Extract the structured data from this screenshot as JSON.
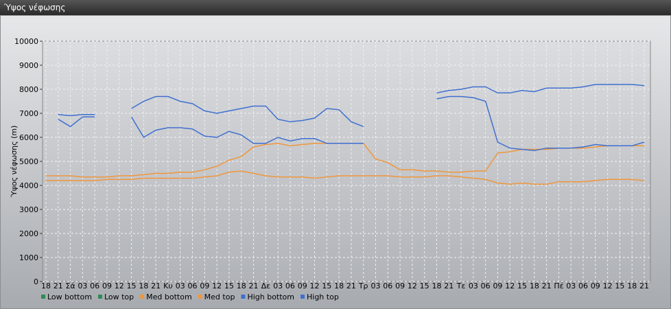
{
  "window_title": "Ύψος νέφωσης",
  "chart_data": {
    "type": "line",
    "ylabel": "Ύψος νέφωσης (m)",
    "categories": [
      "18",
      "21",
      "Σά",
      "03",
      "06",
      "09",
      "12",
      "15",
      "18",
      "21",
      "Κυ",
      "03",
      "06",
      "09",
      "12",
      "15",
      "18",
      "21",
      "Δε",
      "03",
      "06",
      "09",
      "12",
      "15",
      "18",
      "21",
      "Τρ",
      "03",
      "06",
      "09",
      "12",
      "15",
      "18",
      "21",
      "Τε",
      "03",
      "06",
      "09",
      "12",
      "15",
      "18",
      "21",
      "Πέ",
      "03",
      "06",
      "09",
      "12",
      "15",
      "18",
      "21"
    ],
    "ylim": [
      0,
      10000
    ],
    "yticks": [
      0,
      1000,
      2000,
      3000,
      4000,
      5000,
      6000,
      7000,
      8000,
      9000,
      10000
    ],
    "grid": true,
    "series": [
      {
        "name": "Low bottom",
        "color": "#2e8b57",
        "values": [
          null,
          null,
          null,
          null,
          null,
          null,
          null,
          null,
          null,
          null,
          null,
          null,
          null,
          null,
          null,
          null,
          null,
          null,
          null,
          null,
          null,
          null,
          null,
          null,
          null,
          null,
          null,
          null,
          null,
          null,
          null,
          null,
          null,
          null,
          null,
          null,
          null,
          null,
          null,
          null,
          null,
          null,
          null,
          null,
          null,
          null,
          null,
          null,
          null,
          null
        ]
      },
      {
        "name": "Low top",
        "color": "#2e8b57",
        "values": [
          null,
          null,
          null,
          null,
          null,
          null,
          null,
          null,
          null,
          null,
          null,
          null,
          null,
          null,
          null,
          null,
          null,
          null,
          null,
          null,
          null,
          null,
          null,
          null,
          null,
          null,
          null,
          null,
          null,
          null,
          null,
          null,
          null,
          null,
          null,
          null,
          null,
          null,
          null,
          null,
          null,
          null,
          null,
          null,
          null,
          null,
          null,
          null,
          null,
          null
        ]
      },
      {
        "name": "Med bottom",
        "color": "#f0963a",
        "values": [
          4200,
          4200,
          4200,
          4200,
          4200,
          4250,
          4250,
          4250,
          4300,
          4300,
          4300,
          4300,
          4300,
          4350,
          4400,
          4550,
          4600,
          4500,
          4400,
          4350,
          4350,
          4350,
          4300,
          4350,
          4400,
          4400,
          4400,
          4400,
          4400,
          4350,
          4350,
          4350,
          4400,
          4400,
          4350,
          4300,
          4250,
          4100,
          4050,
          4100,
          4050,
          4050,
          4150,
          4150,
          4150,
          4200,
          4250,
          4250,
          4250,
          4200
        ]
      },
      {
        "name": "Med top",
        "color": "#f0963a",
        "values": [
          4400,
          4400,
          4400,
          4350,
          4350,
          4350,
          4400,
          4400,
          4450,
          4500,
          4500,
          4550,
          4550,
          4650,
          4800,
          5050,
          5200,
          5600,
          5700,
          5750,
          5650,
          5700,
          5750,
          5750,
          5750,
          5750,
          5750,
          5100,
          4950,
          4650,
          4650,
          4600,
          4600,
          4550,
          4550,
          4600,
          4600,
          5350,
          5400,
          5500,
          5500,
          5500,
          5550,
          5550,
          5550,
          5600,
          5650,
          5650,
          5650,
          5650
        ]
      },
      {
        "name": "High bottom",
        "color": "#3f6fd0",
        "values": [
          null,
          6750,
          6450,
          6850,
          6850,
          null,
          null,
          6850,
          6000,
          6300,
          6400,
          6400,
          6350,
          6050,
          6000,
          6250,
          6100,
          5750,
          5750,
          6000,
          5850,
          5950,
          5950,
          5750,
          5750,
          5750,
          5750,
          null,
          null,
          null,
          null,
          null,
          7600,
          7700,
          7700,
          7650,
          7500,
          5800,
          5550,
          5500,
          5450,
          5550,
          5550,
          5550,
          5600,
          5700,
          5650,
          5650,
          5650,
          5800
        ]
      },
      {
        "name": "High top",
        "color": "#3f6fd0",
        "values": [
          null,
          6950,
          6900,
          6950,
          6950,
          null,
          null,
          7200,
          7500,
          7700,
          7700,
          7500,
          7400,
          7100,
          7000,
          7100,
          7200,
          7300,
          7300,
          6750,
          6650,
          6700,
          6800,
          7200,
          7150,
          6650,
          6450,
          null,
          null,
          null,
          null,
          null,
          7850,
          7950,
          8000,
          8100,
          8100,
          7850,
          7850,
          7950,
          7900,
          8050,
          8050,
          8050,
          8100,
          8200,
          8200,
          8200,
          8200,
          8150
        ]
      }
    ]
  }
}
